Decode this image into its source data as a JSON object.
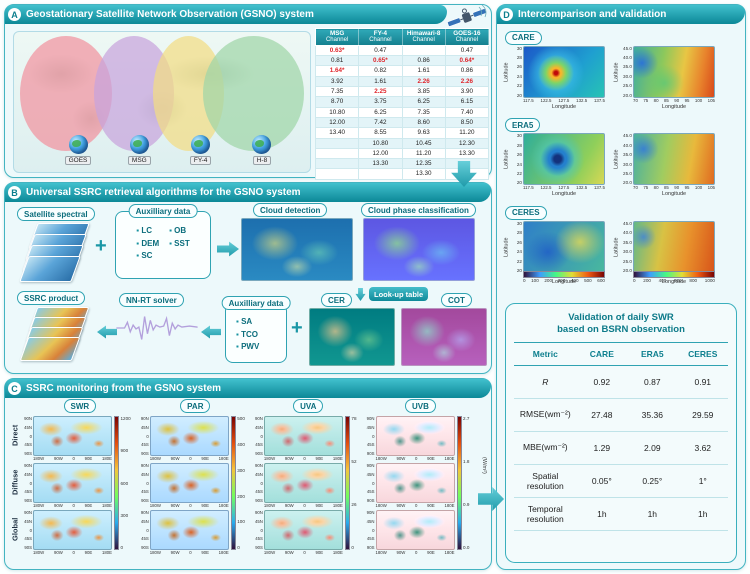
{
  "colors": {
    "accent": "#128a99",
    "accent_light": "#43bcc9",
    "red": "#e0262c"
  },
  "panelA": {
    "letter": "A",
    "title": "Geostationary Satellite Network Observation (GSNO) system",
    "satellites": [
      "GOES",
      "MSG",
      "FY-4",
      "H-8"
    ],
    "channel_table": {
      "columns": [
        {
          "name": "MSG",
          "sub": "Channel"
        },
        {
          "name": "FY-4",
          "sub": "Channel"
        },
        {
          "name": "Himawari-8",
          "sub": "Channel"
        },
        {
          "name": "GOES-16",
          "sub": "Channel"
        }
      ],
      "rows": [
        [
          {
            "t": "0.63*",
            "red": true
          },
          {
            "t": "0.47"
          },
          {
            "t": ""
          },
          {
            "t": "0.47"
          }
        ],
        [
          {
            "t": "0.81"
          },
          {
            "t": "0.65*",
            "red": true
          },
          {
            "t": "0.86"
          },
          {
            "t": "0.64*",
            "red": true
          }
        ],
        [
          {
            "t": "1.64*",
            "red": true
          },
          {
            "t": "0.82"
          },
          {
            "t": "1.61"
          },
          {
            "t": "0.86"
          }
        ],
        [
          {
            "t": "3.92"
          },
          {
            "t": "1.61"
          },
          {
            "t": "2.26",
            "red": true
          },
          {
            "t": "2.26",
            "red": true
          }
        ],
        [
          {
            "t": "7.35"
          },
          {
            "t": "2.25",
            "red": true
          },
          {
            "t": "3.85"
          },
          {
            "t": "3.90"
          }
        ],
        [
          {
            "t": "8.70"
          },
          {
            "t": "3.75"
          },
          {
            "t": "6.25"
          },
          {
            "t": "6.15"
          }
        ],
        [
          {
            "t": "10.80"
          },
          {
            "t": "6.25"
          },
          {
            "t": "7.35"
          },
          {
            "t": "7.40"
          }
        ],
        [
          {
            "t": "12.00"
          },
          {
            "t": "7.42"
          },
          {
            "t": "8.60"
          },
          {
            "t": "8.50"
          }
        ],
        [
          {
            "t": "13.40"
          },
          {
            "t": "8.55"
          },
          {
            "t": "9.63"
          },
          {
            "t": "11.20"
          }
        ],
        [
          {
            "t": ""
          },
          {
            "t": "10.80"
          },
          {
            "t": "10.45"
          },
          {
            "t": "12.30"
          }
        ],
        [
          {
            "t": ""
          },
          {
            "t": "12.00"
          },
          {
            "t": "11.20"
          },
          {
            "t": "13.30"
          }
        ],
        [
          {
            "t": ""
          },
          {
            "t": "13.30"
          },
          {
            "t": "12.35"
          },
          {
            "t": ""
          }
        ],
        [
          {
            "t": ""
          },
          {
            "t": ""
          },
          {
            "t": "13.30"
          },
          {
            "t": ""
          }
        ]
      ]
    }
  },
  "panelB": {
    "letter": "B",
    "title": "Universal SSRC retrieval algorithms for the GSNO system",
    "plus": "+",
    "satellite_spectral": "Satellite spectral",
    "aux_top": {
      "title": "Auxilliary data",
      "col1": [
        "LC",
        "DEM",
        "SC"
      ],
      "col2": [
        "OB",
        "SST"
      ]
    },
    "cloud_detection": "Cloud detection",
    "cloud_phase": "Cloud phase classification",
    "lookup_table": "Look-up table",
    "cer": "CER",
    "cot": "COT",
    "ssrc_product": "SSRC product",
    "nn_rt": "NN-RT solver",
    "aux_bottom": {
      "title": "Auxilliary data",
      "items": [
        "SA",
        "TCO",
        "PWV"
      ]
    }
  },
  "panelC": {
    "letter": "C",
    "title": "SSRC monitoring from the GSNO system",
    "columns": [
      "SWR",
      "PAR",
      "UVA",
      "UVB"
    ],
    "row_labels": [
      "Direct",
      "Diffuse",
      "Global"
    ],
    "yticks": [
      "90N",
      "45N",
      "0",
      "45S",
      "90S"
    ],
    "xticks": [
      "180W",
      "90W",
      "0",
      "90E",
      "180E"
    ],
    "colorbars": [
      [
        "1200",
        "900",
        "600",
        "300",
        "0"
      ],
      [
        "500",
        "400",
        "300",
        "200",
        "100",
        "0"
      ],
      [
        "78",
        "52",
        "26",
        "0"
      ],
      [
        "2.7",
        "1.8",
        "0.9",
        "0.0"
      ]
    ],
    "unit": "(W/m²)"
  },
  "panelD": {
    "letter": "D",
    "title": "Intercomparison and validation",
    "row_labels": [
      "CARE",
      "ERA5",
      "CERES"
    ],
    "xlabel": "Longitude",
    "ylabel": "Latitude",
    "left_axis": {
      "yticks": [
        "30",
        "28",
        "26",
        "24",
        "22",
        "20"
      ],
      "xticks": [
        "117.5",
        "122.5",
        "127.5",
        "132.5",
        "137.5"
      ]
    },
    "right_axis": {
      "yticks": [
        "45.0",
        "40.0",
        "35.0",
        "30.0",
        "25.0",
        "20.0"
      ],
      "xticks": [
        "70",
        "75",
        "80",
        "85",
        "90",
        "95",
        "100",
        "105"
      ]
    },
    "colorbar_left": [
      "0",
      "100",
      "200",
      "300",
      "400",
      "500",
      "600"
    ],
    "colorbar_right": [
      "0",
      "200",
      "400",
      "600",
      "800",
      "1000"
    ],
    "validation": {
      "title": [
        "Validation of daily SWR",
        "based on BSRN observation"
      ],
      "headers": [
        "Metric",
        "CARE",
        "ERA5",
        "CERES"
      ],
      "rows": [
        [
          "R",
          "0.92",
          "0.87",
          "0.91"
        ],
        [
          "RMSE(wm⁻²)",
          "27.48",
          "35.36",
          "29.59"
        ],
        [
          "MBE(wm⁻²)",
          "1.29",
          "2.09",
          "3.62"
        ],
        [
          "Spatial resolution",
          "0.05°",
          "0.25°",
          "1°"
        ],
        [
          "Temporal resolution",
          "1h",
          "1h",
          "1h"
        ]
      ]
    }
  }
}
